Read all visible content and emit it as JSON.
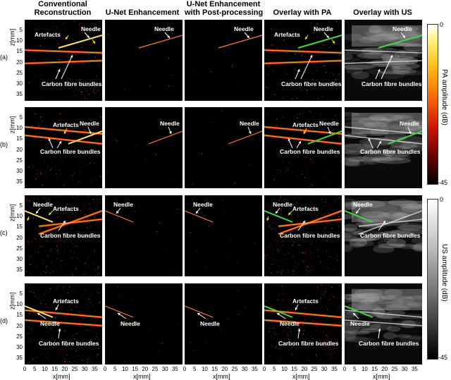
{
  "columns": [
    {
      "title_line1": "Conventional",
      "title_line2": "Reconstruction"
    },
    {
      "title_line1": "U-Net Enhancement",
      "title_line2": ""
    },
    {
      "title_line1": "U-Net Enhancement",
      "title_line2": "with Post-processing"
    },
    {
      "title_line1": "Overlay with PA",
      "title_line2": ""
    },
    {
      "title_line1": "Overlay with US",
      "title_line2": ""
    }
  ],
  "rows": [
    "(a)",
    "(b)",
    "(c)",
    "(d)"
  ],
  "y_axis_label": "z[mm]",
  "y_ticks": [
    "5",
    "10",
    "15",
    "20",
    "25",
    "30",
    "35"
  ],
  "x_axis_label": "x[mm]",
  "x_ticks": [
    "0",
    "5",
    "10",
    "15",
    "20",
    "25",
    "30",
    "35"
  ],
  "annotations": {
    "needle": "Needle",
    "artefacts": "Artefacts",
    "carbon": "Carbon fibre bundles"
  },
  "colorbars": {
    "pa": {
      "label": "PA amplitude (dB)",
      "top": "0",
      "bottom": "-45"
    },
    "us": {
      "label": "US amplitude (dB)",
      "top": "0",
      "bottom": "-45"
    }
  },
  "colors": {
    "pa_hot": "#ffcc33",
    "needle_overlay": "#3fd84a",
    "background": "#000000"
  }
}
